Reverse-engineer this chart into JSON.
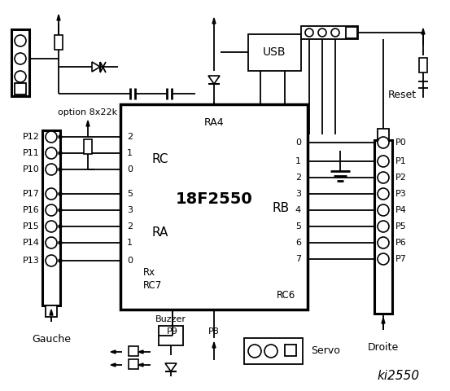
{
  "bg_color": "#ffffff",
  "lc": "#000000",
  "title": "ki2550",
  "chip_label": "18F2550",
  "chip_sub": "RA4",
  "rc_label": "RC",
  "ra_label": "RA",
  "rx_label": "Rx",
  "rc7_label": "RC7",
  "rc6_label": "RC6",
  "rb_label": "RB",
  "left_pins": [
    "P12",
    "P11",
    "P10",
    "P17",
    "P16",
    "P15",
    "P14",
    "P13"
  ],
  "lrc_pins": [
    "2",
    "1",
    "0",
    "5",
    "3",
    "2",
    "1",
    "0"
  ],
  "right_pins": [
    "P0",
    "P1",
    "P2",
    "P3",
    "P4",
    "P5",
    "P6",
    "P7"
  ],
  "rb_pins": [
    "0",
    "1",
    "2",
    "3",
    "4",
    "5",
    "6",
    "7"
  ],
  "option_label": "option 8x22k",
  "usb_label": "USB",
  "reset_label": "Reset",
  "servo_label": "Servo",
  "buzzer_label": "Buzzer",
  "gauche_label": "Gauche",
  "droite_label": "Droite",
  "p8_label": "P8",
  "p9_label": "P9"
}
